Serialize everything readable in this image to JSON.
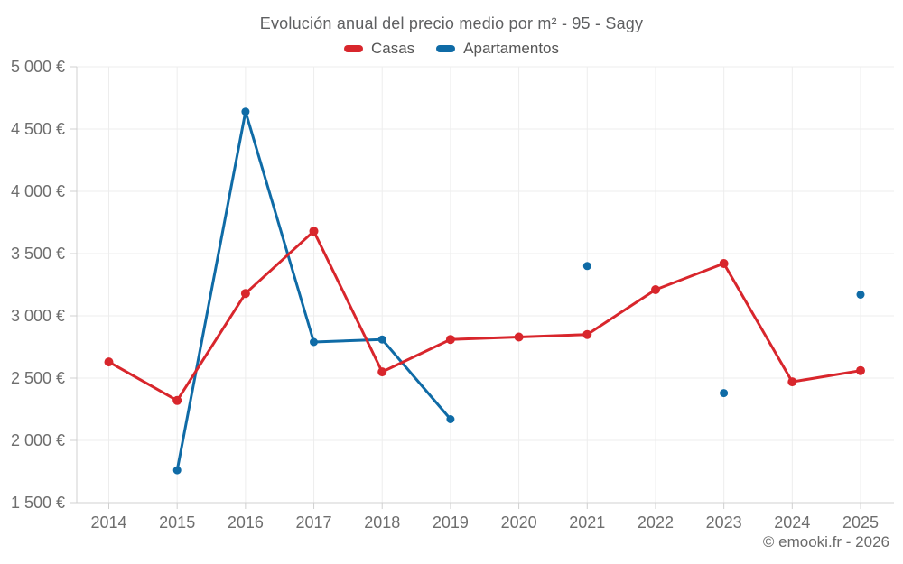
{
  "title": "Evolución anual del precio medio por m² - 95 - Sagy",
  "footer": "© emooki.fr - 2026",
  "colors": {
    "casas": "#d8262c",
    "apartamentos": "#0f6ba6",
    "grid": "#ededed",
    "axis": "#d0d0d0",
    "tick_text": "#6e6e6e"
  },
  "chart_data": {
    "type": "line",
    "title": "Evolución anual del precio medio por m² - 95 - Sagy",
    "categories": [
      "2014",
      "2015",
      "2016",
      "2017",
      "2018",
      "2019",
      "2020",
      "2021",
      "2022",
      "2023",
      "2024",
      "2025"
    ],
    "series": [
      {
        "name": "Casas",
        "color": "#d8262c",
        "values": [
          2630,
          2320,
          3180,
          3680,
          2550,
          2810,
          2830,
          2850,
          3210,
          3420,
          2470,
          2560
        ]
      },
      {
        "name": "Apartamentos",
        "color": "#0f6ba6",
        "values": [
          null,
          1760,
          4640,
          2790,
          2810,
          2170,
          null,
          3400,
          null,
          2380,
          null,
          3170
        ]
      }
    ],
    "ylim": [
      1500,
      5000
    ],
    "y_tick_step": 500,
    "y_tick_labels": [
      "1 500 €",
      "2 000 €",
      "2 500 €",
      "3 000 €",
      "3 500 €",
      "4 000 €",
      "4 500 €",
      "5 000 €"
    ],
    "y_unit": "€",
    "grid": true,
    "legend_position": "top"
  }
}
